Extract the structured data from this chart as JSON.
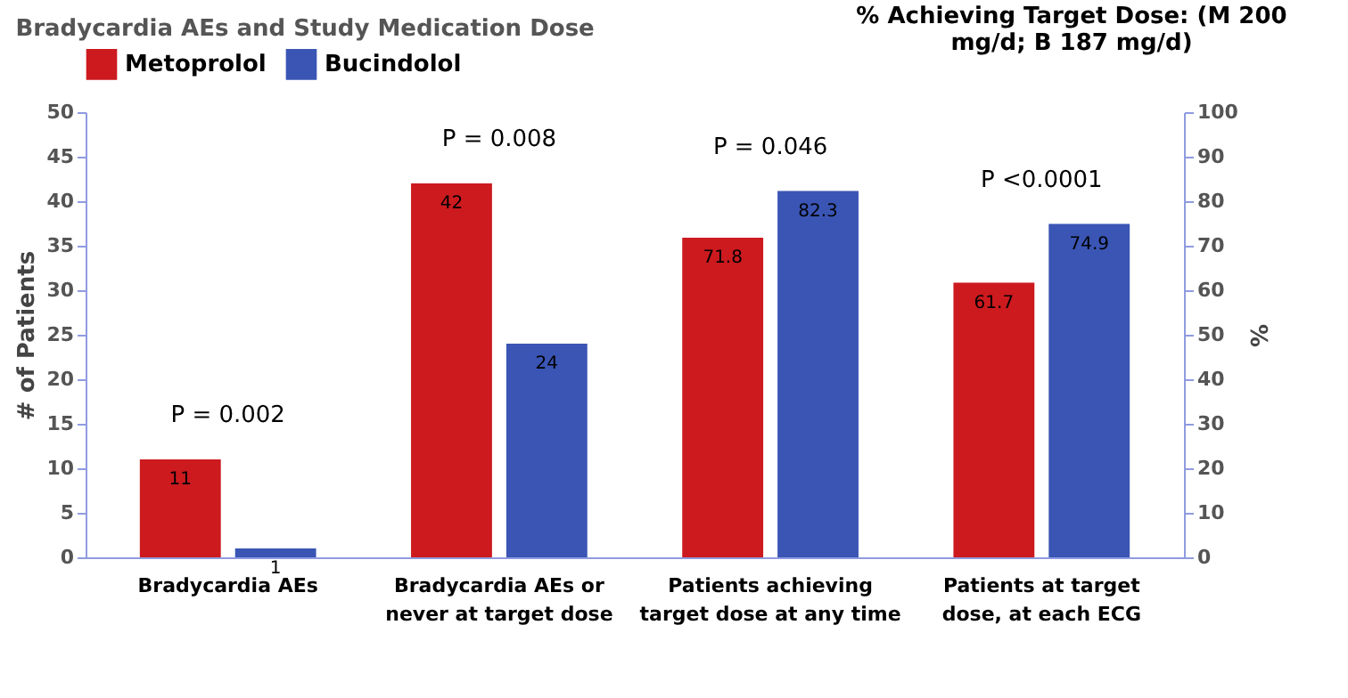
{
  "chart_data": {
    "type": "bar",
    "title": "Bradycardia AEs and Study Medication Dose",
    "categories": [
      "Bradycardia AEs",
      "Bradycardia AEs or never at target dose",
      "Patients achieving target dose at any time",
      "Patients at target dose, at each ECG"
    ],
    "series": [
      {
        "name": "Metoprolol",
        "color": "#cc1a1e",
        "values": [
          11,
          42,
          null,
          null
        ]
      },
      {
        "name": "Bucindolol",
        "color": "#3a55b4",
        "values": [
          1,
          24,
          null,
          null
        ]
      },
      {
        "color": "#cc1a1e",
        "axis": "y2",
        "values": [
          null,
          null,
          71.8,
          61.7
        ]
      },
      {
        "color": "#3a55b4",
        "axis": "y2",
        "values": [
          null,
          null,
          82.3,
          74.9
        ]
      }
    ],
    "ylabel": "# of Patients",
    "y2label": "%",
    "ylim": [
      0,
      50
    ],
    "yticks": [
      0,
      5,
      10,
      15,
      20,
      25,
      30,
      35,
      40,
      45,
      50
    ],
    "y2lim": [
      0,
      100
    ],
    "y2ticks": [
      0,
      10,
      20,
      30,
      40,
      50,
      60,
      70,
      80,
      90,
      100
    ],
    "data_labels": true,
    "legend": "top",
    "grid": false,
    "subtitle": "% Achieving Target Dose: (M 200 mg/d; B 187 mg/d)",
    "annotations": [
      "P = 0.002",
      "P = 0.008",
      "P = 0.046",
      "P <0.0001"
    ]
  }
}
